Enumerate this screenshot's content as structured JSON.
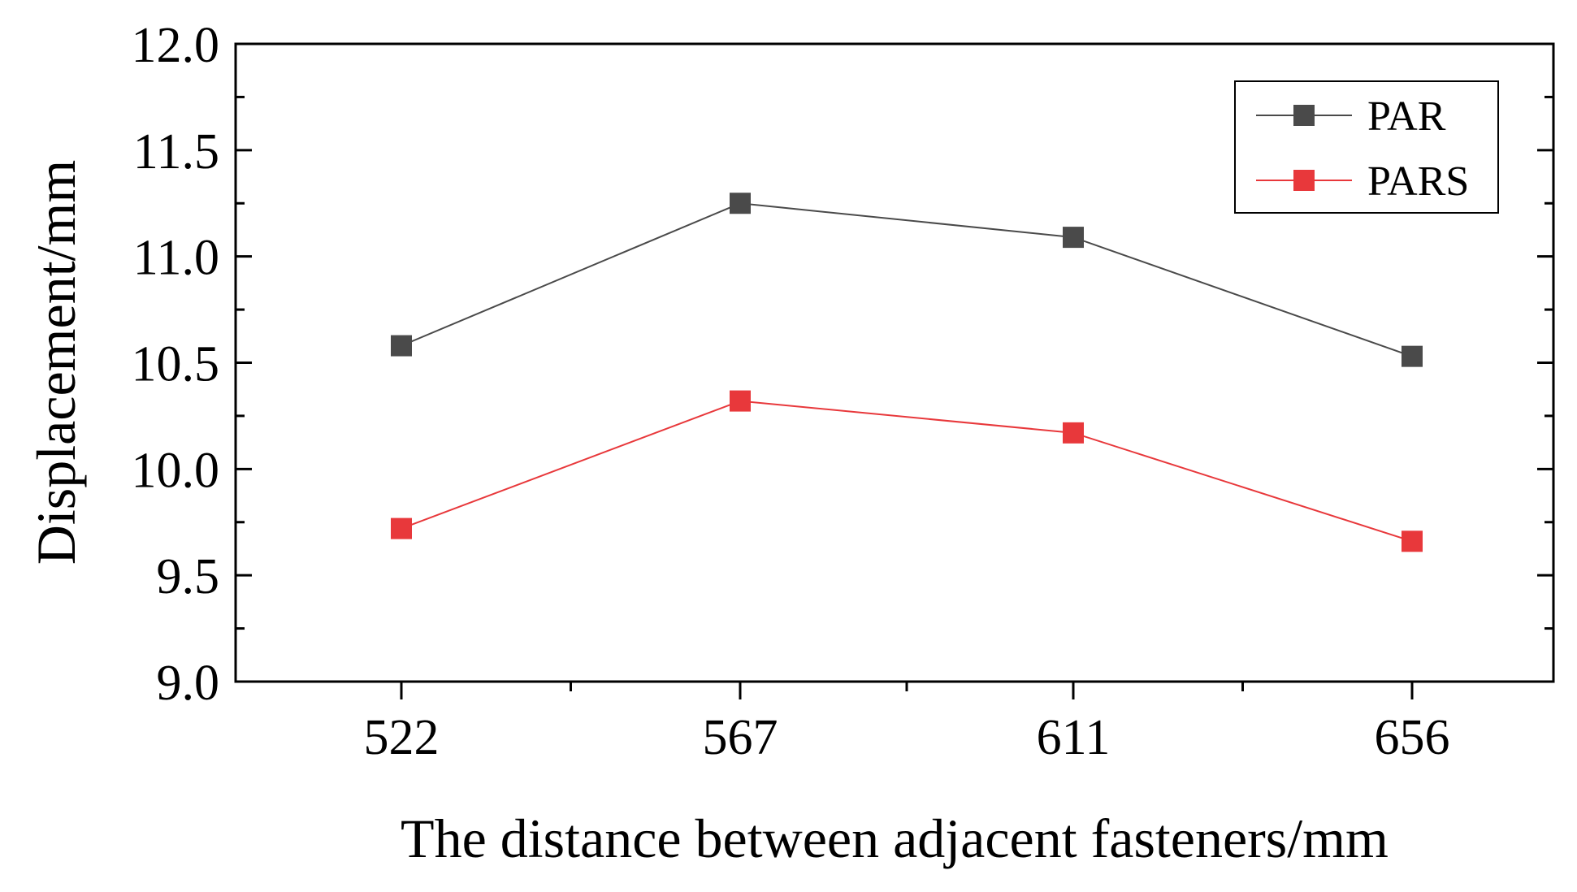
{
  "chart_data": {
    "type": "line",
    "title": "",
    "xlabel": "The distance between adjacent fasteners/mm",
    "ylabel": "Displacement/mm",
    "categories": [
      "522",
      "567",
      "611",
      "656"
    ],
    "ylim": [
      9.0,
      12.0
    ],
    "yticks": [
      "9.0",
      "9.5",
      "10.0",
      "10.5",
      "11.0",
      "11.5",
      "12.0"
    ],
    "grid": false,
    "legend_position": "top-right",
    "series": [
      {
        "name": "PAR",
        "color": "#4a4a4a",
        "marker": "square",
        "values": [
          10.58,
          11.25,
          11.09,
          10.53
        ]
      },
      {
        "name": "PARS",
        "color": "#e8383b",
        "marker": "square",
        "values": [
          9.72,
          10.32,
          10.17,
          9.66
        ]
      }
    ]
  }
}
